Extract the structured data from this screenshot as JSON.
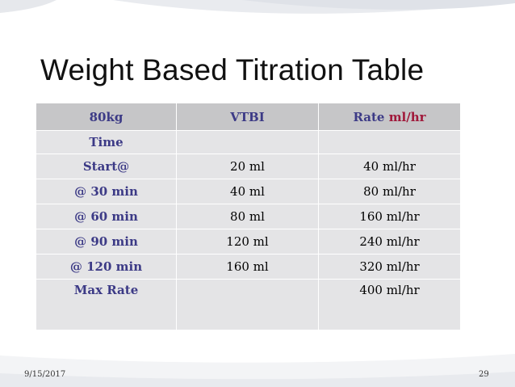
{
  "slide": {
    "title": "Weight Based Titration Table",
    "footer_date": "9/15/2017",
    "page_number": "29"
  },
  "table": {
    "header": {
      "weight": "80kg",
      "vtbi": "VTBI",
      "rate_label": "Rate",
      "rate_unit": "ml/hr"
    },
    "rows": [
      {
        "label": "Time",
        "vtbi": "",
        "rate": ""
      },
      {
        "label": "Start@",
        "vtbi": "20 ml",
        "rate": "40 ml/hr"
      },
      {
        "label": "@ 30 min",
        "vtbi": "40 ml",
        "rate": "80 ml/hr"
      },
      {
        "label": "@ 60 min",
        "vtbi": "80 ml",
        "rate": "160 ml/hr"
      },
      {
        "label": "@ 90 min",
        "vtbi": "120 ml",
        "rate": "240 ml/hr"
      },
      {
        "label": "@ 120 min",
        "vtbi": "160 ml",
        "rate": "320 ml/hr"
      },
      {
        "label": "Max Rate",
        "vtbi": "",
        "rate": "400 ml/hr"
      }
    ]
  },
  "colors": {
    "header_bg": "#c6c6c8",
    "row_bg": "#e4e4e6",
    "label_text": "#3c3a86",
    "unit_text": "#a0183a"
  }
}
